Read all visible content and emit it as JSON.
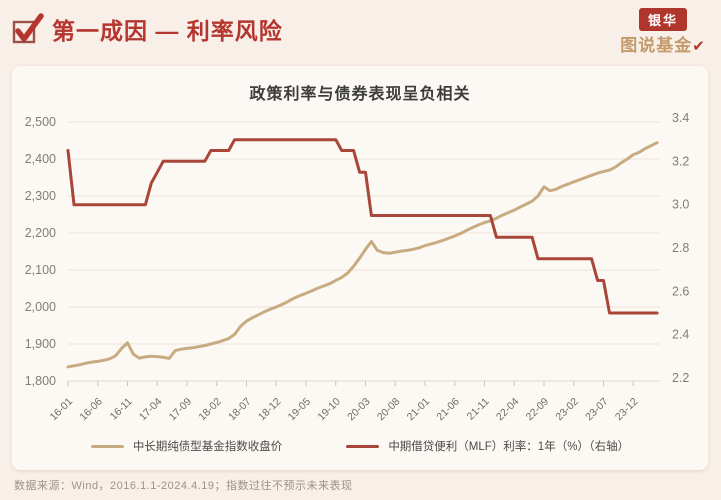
{
  "header": {
    "title": "第一成因 — 利率风险"
  },
  "logo": {
    "badge": "银华",
    "text": "图说基金",
    "check": "✔"
  },
  "footer": {
    "source": "数据来源：Wind，2016.1.1-2024.4.19；指数过往不预示未来表现"
  },
  "colors": {
    "header_red": "#b5362e",
    "bond_index_tan": "#c8ab80",
    "mlf_red": "#a8463a",
    "logo_gold": "#c49a6c"
  },
  "chart_data": {
    "type": "line",
    "title": "政策利率与债券表现呈负相关",
    "x_start": "2016-01",
    "x_end": "2024-04",
    "x_frequency": "monthly",
    "x_tick_labels": [
      "16-01",
      "16-06",
      "16-11",
      "17-04",
      "17-09",
      "18-02",
      "18-07",
      "18-12",
      "19-05",
      "19-10",
      "20-03",
      "20-08",
      "21-01",
      "21-06",
      "21-11",
      "22-04",
      "22-09",
      "23-02",
      "23-07",
      "23-12"
    ],
    "left_axis": {
      "min": 1800,
      "max": 2500,
      "ticks": [
        "2,500",
        "2,400",
        "2,300",
        "2,200",
        "2,100",
        "2,000",
        "1,900",
        "1,800"
      ]
    },
    "right_axis": {
      "min": 2.2,
      "max": 3.4,
      "ticks": [
        "3.4",
        "3.2",
        "3.0",
        "2.8",
        "2.6",
        "2.4",
        "2.2"
      ]
    },
    "grid": "horizontal",
    "legend_position": "bottom",
    "series": [
      {
        "name": "中长期纯债型基金指数收盘价",
        "axis": "left",
        "color": "#c8ab80",
        "values": [
          1838,
          1841,
          1844,
          1848,
          1851,
          1853,
          1856,
          1860,
          1868,
          1888,
          1903,
          1872,
          1862,
          1865,
          1867,
          1866,
          1864,
          1861,
          1882,
          1886,
          1888,
          1890,
          1893,
          1896,
          1900,
          1904,
          1909,
          1915,
          1926,
          1948,
          1962,
          1971,
          1979,
          1987,
          1994,
          2000,
          2007,
          2015,
          2024,
          2031,
          2037,
          2044,
          2051,
          2057,
          2063,
          2072,
          2080,
          2092,
          2110,
          2132,
          2156,
          2177,
          2153,
          2147,
          2145,
          2148,
          2151,
          2153,
          2156,
          2160,
          2166,
          2170,
          2175,
          2180,
          2186,
          2192,
          2199,
          2207,
          2215,
          2222,
          2228,
          2233,
          2240,
          2248,
          2255,
          2262,
          2270,
          2278,
          2286,
          2300,
          2325,
          2314,
          2318,
          2326,
          2332,
          2338,
          2344,
          2350,
          2356,
          2362,
          2366,
          2370,
          2378,
          2390,
          2400,
          2412,
          2418,
          2428,
          2436,
          2444
        ]
      },
      {
        "name": "中期借贷便利（MLF）利率：1年（%）（右轴）",
        "axis": "right",
        "color": "#a8463a",
        "values": [
          3.25,
          3.0,
          3.0,
          3.0,
          3.0,
          3.0,
          3.0,
          3.0,
          3.0,
          3.0,
          3.0,
          3.0,
          3.0,
          3.0,
          3.1,
          3.15,
          3.2,
          3.2,
          3.2,
          3.2,
          3.2,
          3.2,
          3.2,
          3.2,
          3.25,
          3.25,
          3.25,
          3.25,
          3.3,
          3.3,
          3.3,
          3.3,
          3.3,
          3.3,
          3.3,
          3.3,
          3.3,
          3.3,
          3.3,
          3.3,
          3.3,
          3.3,
          3.3,
          3.3,
          3.3,
          3.3,
          3.25,
          3.25,
          3.25,
          3.15,
          3.15,
          2.95,
          2.95,
          2.95,
          2.95,
          2.95,
          2.95,
          2.95,
          2.95,
          2.95,
          2.95,
          2.95,
          2.95,
          2.95,
          2.95,
          2.95,
          2.95,
          2.95,
          2.95,
          2.95,
          2.95,
          2.95,
          2.85,
          2.85,
          2.85,
          2.85,
          2.85,
          2.85,
          2.85,
          2.75,
          2.75,
          2.75,
          2.75,
          2.75,
          2.75,
          2.75,
          2.75,
          2.75,
          2.75,
          2.65,
          2.65,
          2.5,
          2.5,
          2.5,
          2.5,
          2.5,
          2.5,
          2.5,
          2.5,
          2.5
        ]
      }
    ]
  }
}
